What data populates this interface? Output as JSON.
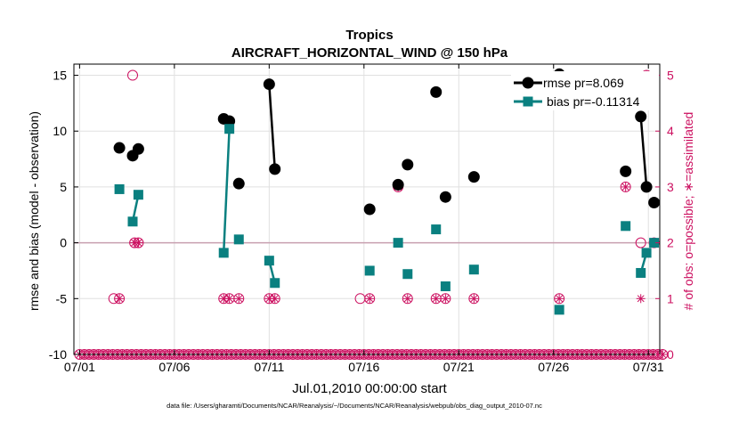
{
  "chart_data": {
    "type": "line",
    "title": "Tropics",
    "subtitle": "AIRCRAFT_HORIZONTAL_WIND @ 150 hPa",
    "xlabel": "Jul.01,2010 00:00:00 start",
    "ylabel": "rmse and bias (model - observation)",
    "ylabel_right": "# of obs: o=possible; ∗=assimilated",
    "footnote": "data file: /Users/gharamti/Documents/NCAR/Reanalysis/~/Documents/NCAR/Reanalysis/webpub/obs_diag_output_2010-07.nc",
    "xlim": [
      0.7,
      31.6
    ],
    "ylim": [
      -10,
      16
    ],
    "ylim_right": [
      0,
      5.2
    ],
    "x_ticks": [
      1,
      6,
      11,
      16,
      21,
      26,
      31
    ],
    "x_tick_labels": [
      "07/01",
      "07/06",
      "07/11",
      "07/16",
      "07/21",
      "07/26",
      "07/31"
    ],
    "y_ticks": [
      -10,
      -5,
      0,
      5,
      10,
      15
    ],
    "y_tick_labels": [
      "-10",
      "-5",
      "0",
      "5",
      "10",
      "15"
    ],
    "y_ticks_right": [
      0,
      1,
      2,
      3,
      4,
      5
    ],
    "y_tick_labels_right": [
      "0",
      "1",
      "2",
      "3",
      "4",
      "5"
    ],
    "grid": true,
    "legend_position": "top-right",
    "colors": {
      "rmse": "#000000",
      "bias": "#0a8080",
      "obs": "#cc1060",
      "zero_line": "#c8a0b0",
      "grid": "#e0e0e0"
    },
    "series": [
      {
        "name": "rmse pr=8.069",
        "key": "rmse",
        "segments": [
          [
            [
              3.1,
              8.5
            ]
          ],
          [
            [
              3.8,
              7.8
            ],
            [
              4.1,
              8.4
            ]
          ],
          [
            [
              8.6,
              11.1
            ],
            [
              8.9,
              10.9
            ]
          ],
          [
            [
              9.4,
              5.3
            ]
          ],
          [
            [
              11.0,
              14.2
            ],
            [
              11.3,
              6.6
            ]
          ],
          [
            [
              16.3,
              3.0
            ]
          ],
          [
            [
              17.8,
              5.2
            ]
          ],
          [
            [
              18.3,
              7.0
            ]
          ],
          [
            [
              19.8,
              13.5
            ]
          ],
          [
            [
              20.3,
              4.1
            ]
          ],
          [
            [
              21.8,
              5.9
            ]
          ],
          [
            [
              26.3,
              15.1
            ]
          ],
          [
            [
              29.8,
              6.4
            ]
          ],
          [
            [
              30.6,
              11.3
            ],
            [
              30.9,
              5.0
            ]
          ],
          [
            [
              31.3,
              3.6
            ]
          ]
        ]
      },
      {
        "name": "bias pr=-0.11314",
        "key": "bias",
        "segments": [
          [
            [
              3.1,
              4.8
            ]
          ],
          [
            [
              3.8,
              1.9
            ],
            [
              4.1,
              4.3
            ]
          ],
          [
            [
              8.6,
              -0.9
            ],
            [
              8.9,
              10.2
            ]
          ],
          [
            [
              9.4,
              0.3
            ]
          ],
          [
            [
              11.0,
              -1.6
            ],
            [
              11.3,
              -3.6
            ]
          ],
          [
            [
              16.3,
              -2.5
            ]
          ],
          [
            [
              17.8,
              0.0
            ]
          ],
          [
            [
              18.3,
              -2.8
            ]
          ],
          [
            [
              19.8,
              1.2
            ]
          ],
          [
            [
              20.3,
              -3.9
            ]
          ],
          [
            [
              21.8,
              -2.4
            ]
          ],
          [
            [
              26.3,
              -6.0
            ]
          ],
          [
            [
              29.8,
              1.5
            ]
          ],
          [
            [
              30.6,
              -2.7
            ],
            [
              30.9,
              -0.9
            ]
          ],
          [
            [
              31.3,
              0.0
            ]
          ]
        ]
      }
    ],
    "obs_possible": [
      [
        2.8,
        1
      ],
      [
        3.1,
        1
      ],
      [
        3.8,
        5
      ],
      [
        3.9,
        2
      ],
      [
        4.1,
        2
      ],
      [
        8.6,
        1
      ],
      [
        8.9,
        1
      ],
      [
        9.4,
        1
      ],
      [
        11.0,
        1
      ],
      [
        11.3,
        1
      ],
      [
        15.8,
        1
      ],
      [
        16.3,
        1
      ],
      [
        17.8,
        3
      ],
      [
        18.3,
        1
      ],
      [
        19.8,
        1
      ],
      [
        20.3,
        1
      ],
      [
        21.8,
        1
      ],
      [
        26.3,
        1
      ],
      [
        29.8,
        3
      ],
      [
        30.6,
        2
      ],
      [
        30.9,
        5
      ],
      [
        31.3,
        2
      ]
    ],
    "obs_assimilated": [
      [
        3.1,
        1
      ],
      [
        3.9,
        2
      ],
      [
        4.1,
        2
      ],
      [
        8.6,
        1
      ],
      [
        8.9,
        1
      ],
      [
        9.4,
        1
      ],
      [
        11.0,
        1
      ],
      [
        11.3,
        1
      ],
      [
        16.3,
        1
      ],
      [
        17.8,
        3
      ],
      [
        18.3,
        1
      ],
      [
        19.8,
        1
      ],
      [
        20.3,
        1
      ],
      [
        21.8,
        1
      ],
      [
        26.3,
        1
      ],
      [
        29.8,
        3
      ],
      [
        30.6,
        1
      ],
      [
        30.9,
        5
      ],
      [
        31.3,
        2
      ]
    ]
  }
}
